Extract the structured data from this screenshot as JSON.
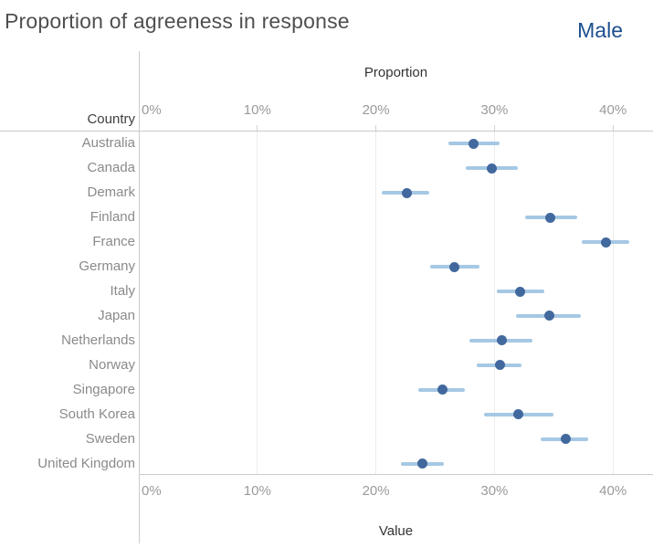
{
  "header": {
    "title": "Proportion of agreeness in response",
    "column_header": "Male"
  },
  "row_header": "Country",
  "top_axis": {
    "title": "Proportion",
    "ticks": [
      "0%",
      "10%",
      "20%",
      "30%",
      "40%"
    ]
  },
  "bottom_axis": {
    "title": "Value",
    "ticks": [
      "0%",
      "10%",
      "20%",
      "30%",
      "40%"
    ]
  },
  "colors": {
    "dot": "#42699e",
    "error_bar": "#a5c8e4",
    "column_header_text": "#1b4f8f",
    "title_text": "#4f4f4f",
    "axis_title_text": "#333333",
    "tick_label_text": "#9a9a9a",
    "row_label_text": "#8a8a8a",
    "grid_line": "#ececec",
    "axis_line": "#cbcbcb"
  },
  "chart_data": {
    "type": "scatter",
    "subtype": "horizontal-dot-plot-with-error-bars",
    "title": "Proportion of agreeness in response",
    "pane_label": "Male",
    "xlabel_top": "Proportion",
    "xlabel_bottom": "Value",
    "ylabel": "Country",
    "xlim": [
      0,
      43.4
    ],
    "x_ticks_percent": [
      0,
      10,
      20,
      30,
      40
    ],
    "grid": "vertical",
    "categories": [
      "Australia",
      "Canada",
      "Demark",
      "Finland",
      "France",
      "Germany",
      "Italy",
      "Japan",
      "Netherlands",
      "Norway",
      "Singapore",
      "South Korea",
      "Sweden",
      "United Kingdom"
    ],
    "series": [
      {
        "name": "Male",
        "values": [
          28.2,
          29.8,
          22.6,
          34.7,
          39.4,
          26.6,
          32.2,
          34.6,
          30.6,
          30.5,
          25.6,
          32.0,
          36.0,
          23.9
        ],
        "ci_low": [
          26.1,
          27.6,
          20.5,
          32.6,
          37.4,
          24.6,
          30.2,
          31.8,
          27.9,
          28.5,
          23.6,
          29.1,
          33.9,
          22.1
        ],
        "ci_high": [
          30.4,
          32.0,
          24.5,
          37.0,
          41.4,
          28.7,
          34.2,
          37.3,
          33.2,
          32.3,
          27.5,
          35.0,
          37.9,
          25.7
        ]
      }
    ]
  }
}
